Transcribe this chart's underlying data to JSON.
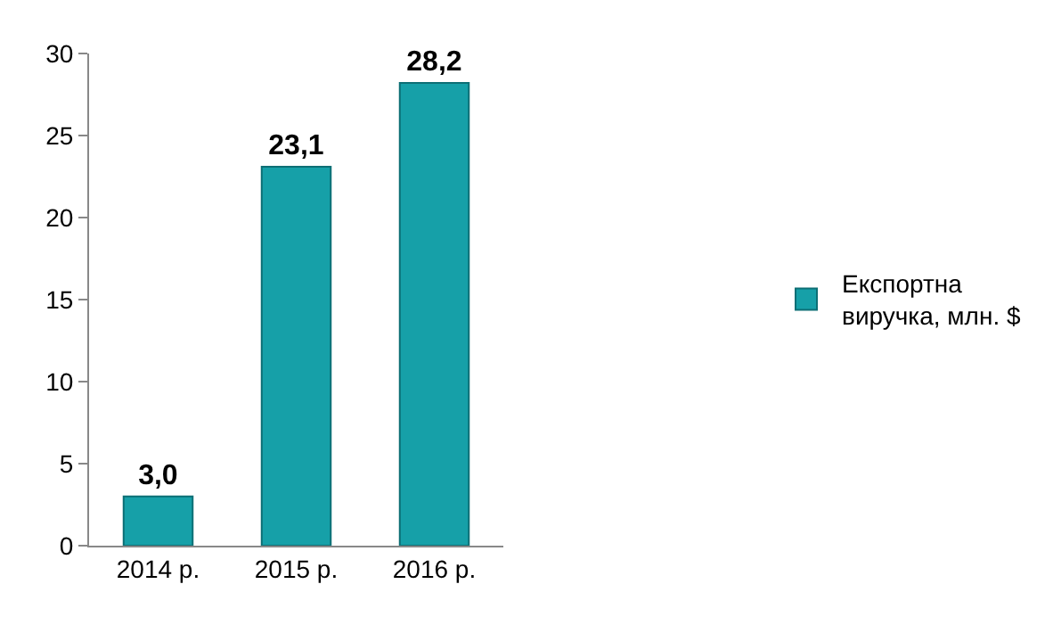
{
  "chart_data": {
    "type": "bar",
    "categories": [
      "2014 р.",
      "2015 р.",
      "2016 р."
    ],
    "series": [
      {
        "name": "Експортна виручка, млн. $",
        "color": "#16a0a8",
        "values": [
          3.0,
          23.1,
          28.2
        ],
        "value_labels": [
          "3,0",
          "23,1",
          "28,2"
        ]
      }
    ],
    "ylim": [
      0,
      30
    ],
    "yticks": [
      0,
      5,
      10,
      15,
      20,
      25,
      30
    ],
    "grid": false,
    "legend": "right"
  }
}
